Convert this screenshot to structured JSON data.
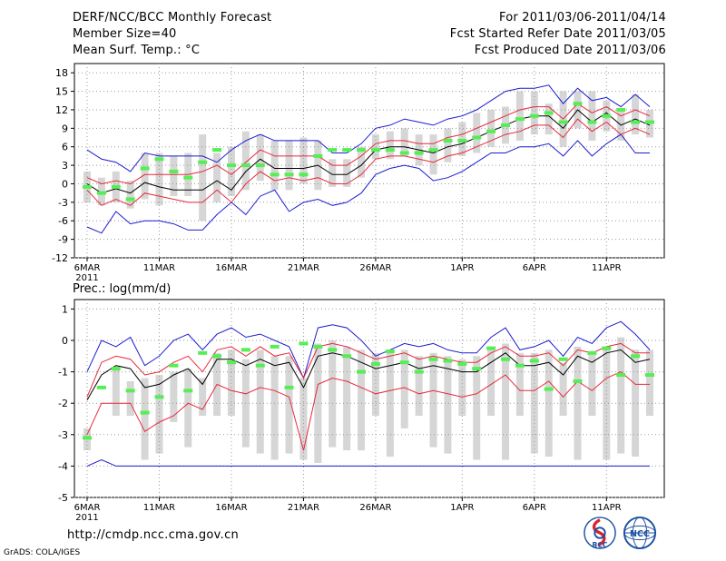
{
  "header": {
    "title": "DERF/NCC/BCC Monthly Forecast",
    "member_size": "Member Size=40",
    "variable": "Mean Surf. Temp.: °C",
    "period": "For 2011/03/06-2011/04/14",
    "fcst_started": "Fcst Started Refer Date 2011/03/05",
    "fcst_produced": "Fcst Produced Date 2011/03/06"
  },
  "footer": {
    "url": "http://cmdp.ncc.cma.gov.cn",
    "credit": "GrADS: COLA/IGES",
    "logo_bcc": "BCC",
    "logo_ncc": "NCC"
  },
  "colors": {
    "box": "#d6d6d6",
    "mean": "#000000",
    "inner_band": "#e8283c",
    "outer_band": "#1c1cd0",
    "obs": "#55ee55",
    "grid": "#9a9a9a"
  },
  "chart_data": [
    {
      "type": "line",
      "title": "Mean Surf. Temp.: °C",
      "x_tick_labels": [
        "6MAR",
        "11MAR",
        "16MAR",
        "21MAR",
        "26MAR",
        "1APR",
        "6APR",
        "11APR"
      ],
      "x_sub_label": "2011",
      "x_tick_days": [
        0,
        5,
        10,
        15,
        20,
        26,
        31,
        36
      ],
      "ylim": [
        -12,
        19.5
      ],
      "y_ticks": [
        -12,
        -9,
        -6,
        -3,
        0,
        3,
        6,
        9,
        12,
        15,
        18
      ],
      "y_tick_labels": [
        "-12",
        "-9",
        "-6",
        "-3",
        "0",
        "3",
        "6",
        "9",
        "12",
        "15",
        "18"
      ],
      "days": [
        0,
        1,
        2,
        3,
        4,
        5,
        6,
        7,
        8,
        9,
        10,
        11,
        12,
        13,
        14,
        15,
        16,
        17,
        18,
        19,
        20,
        21,
        22,
        23,
        24,
        25,
        26,
        27,
        28,
        29,
        30,
        31,
        32,
        33,
        34,
        35,
        36,
        37,
        38,
        39
      ],
      "mean": [
        0,
        -1.5,
        -0.8,
        -1.5,
        0.2,
        -0.5,
        -1,
        -1,
        -1,
        0.5,
        -1,
        2,
        4,
        2.5,
        2.5,
        2.5,
        3,
        1.5,
        1.5,
        3,
        5.5,
        6,
        6,
        5.5,
        5,
        6,
        6.5,
        7.5,
        8.5,
        9.5,
        10.5,
        11,
        11,
        9,
        12,
        10,
        11.5,
        9.5,
        10.5,
        9.5
      ],
      "inner_upper": [
        1,
        0,
        0.5,
        0,
        1.5,
        1.5,
        1.5,
        1.5,
        2,
        3,
        1.5,
        3.5,
        5.5,
        4.5,
        4.5,
        4.5,
        4.5,
        3,
        3,
        4.5,
        6.5,
        7,
        7,
        6.5,
        6.5,
        7.5,
        8,
        9,
        10,
        11,
        12,
        12.5,
        12.5,
        10.5,
        13,
        11.5,
        12.5,
        11,
        12,
        11
      ],
      "inner_lower": [
        -1,
        -3.5,
        -2.5,
        -3.5,
        -1.5,
        -2,
        -2.5,
        -3,
        -3,
        -1,
        -3,
        0,
        2,
        0.5,
        1,
        0.5,
        1,
        0,
        0,
        1.5,
        4,
        4.5,
        4.5,
        4,
        3.5,
        4.5,
        5,
        6,
        7,
        8,
        8.5,
        9.5,
        9.5,
        7.5,
        10.5,
        8.5,
        10,
        8,
        9,
        8
      ],
      "outer_upper": [
        5.5,
        4,
        3.5,
        2,
        5,
        4.5,
        4.5,
        4.5,
        4.5,
        3.5,
        5.5,
        7,
        8,
        7,
        7,
        7,
        7,
        5,
        5,
        6.5,
        9,
        9.5,
        10.5,
        10,
        9.5,
        10.5,
        11,
        12,
        13.5,
        15,
        15.5,
        15.5,
        16,
        13,
        15.5,
        13.5,
        14,
        12.5,
        14.5,
        12.5
      ],
      "outer_lower": [
        -7,
        -8,
        -4.5,
        -6.5,
        -6,
        -6,
        -6.5,
        -7.5,
        -7.5,
        -5,
        -3,
        -5,
        -2,
        -1,
        -4.5,
        -3,
        -2.5,
        -3.5,
        -3,
        -1.5,
        1.5,
        2.5,
        3,
        2.5,
        0.5,
        1,
        2,
        3.5,
        5,
        5,
        6,
        6,
        6.5,
        4.5,
        7,
        4.5,
        6.5,
        8,
        5,
        5
      ],
      "box_top": [
        2,
        1,
        2,
        0.5,
        5,
        5,
        4.5,
        5,
        8,
        5,
        6,
        8.5,
        8,
        7,
        7,
        7.5,
        7,
        4,
        4,
        6,
        8,
        8.5,
        9,
        8,
        8,
        9,
        10,
        11.5,
        12,
        12.5,
        15,
        15,
        13,
        15,
        15,
        15,
        13.5,
        12,
        14.5,
        12
      ],
      "box_bottom": [
        -3,
        -3.5,
        -3,
        -4,
        -2.5,
        -3.5,
        -2,
        -2,
        -6,
        -3,
        -2,
        -1,
        0.5,
        -1,
        -1,
        0,
        -1,
        -0.5,
        -0.5,
        1,
        4,
        4,
        4.5,
        3,
        1.5,
        3.5,
        4.5,
        5,
        6,
        6.5,
        7,
        8,
        8,
        6,
        9,
        7,
        8.5,
        7,
        8,
        7.5
      ],
      "observed": [
        -0.5,
        -1.5,
        -0.5,
        -2.5,
        2.5,
        4,
        2,
        1,
        3.5,
        5.5,
        3,
        3,
        3,
        1.5,
        1.5,
        1.5,
        4.5,
        5.5,
        5.5,
        5.5,
        5.5,
        5.5,
        5,
        5,
        5.5,
        7,
        7,
        7.5,
        8.5,
        9.5,
        10.5,
        11,
        11.5,
        10,
        13,
        10,
        11,
        12,
        10,
        10
      ]
    },
    {
      "type": "line",
      "title": "Prec.: log(mm/d)",
      "x_tick_labels": [
        "6MAR",
        "11MAR",
        "16MAR",
        "21MAR",
        "26MAR",
        "1APR",
        "6APR",
        "11APR"
      ],
      "x_sub_label": "2011",
      "x_tick_days": [
        0,
        5,
        10,
        15,
        20,
        26,
        31,
        36
      ],
      "ylim": [
        -5,
        1.3
      ],
      "y_ticks": [
        -5,
        -4,
        -3,
        -2,
        -1,
        0,
        1
      ],
      "y_tick_labels": [
        "-5",
        "-4",
        "-3",
        "-2",
        "-1",
        "0",
        "1"
      ],
      "days": [
        0,
        1,
        2,
        3,
        4,
        5,
        6,
        7,
        8,
        9,
        10,
        11,
        12,
        13,
        14,
        15,
        16,
        17,
        18,
        19,
        20,
        21,
        22,
        23,
        24,
        25,
        26,
        27,
        28,
        29,
        30,
        31,
        32,
        33,
        34,
        35,
        36,
        37,
        38,
        39
      ],
      "mean": [
        -1.9,
        -1.1,
        -0.8,
        -0.9,
        -1.5,
        -1.4,
        -1.1,
        -0.9,
        -1.4,
        -0.6,
        -0.6,
        -0.8,
        -0.6,
        -0.8,
        -0.7,
        -1.5,
        -0.5,
        -0.4,
        -0.5,
        -0.7,
        -0.9,
        -0.8,
        -0.7,
        -0.9,
        -0.8,
        -0.9,
        -1,
        -1,
        -0.7,
        -0.4,
        -0.8,
        -0.8,
        -0.7,
        -1.1,
        -0.5,
        -0.7,
        -0.4,
        -0.3,
        -0.7,
        -0.6
      ],
      "inner_upper": [
        -1.8,
        -0.7,
        -0.5,
        -0.6,
        -1.1,
        -1,
        -0.7,
        -0.5,
        -1,
        -0.3,
        -0.2,
        -0.5,
        -0.2,
        -0.5,
        -0.4,
        -1.2,
        -0.2,
        -0.1,
        -0.2,
        -0.4,
        -0.6,
        -0.5,
        -0.4,
        -0.6,
        -0.5,
        -0.6,
        -0.7,
        -0.7,
        -0.4,
        -0.2,
        -0.5,
        -0.5,
        -0.4,
        -0.8,
        -0.3,
        -0.4,
        -0.2,
        -0.1,
        -0.4,
        -0.4
      ],
      "inner_lower": [
        -3,
        -2,
        -2,
        -2,
        -2.9,
        -2.6,
        -2.4,
        -2,
        -2.2,
        -1.4,
        -1.6,
        -1.7,
        -1.5,
        -1.6,
        -1.8,
        -3.5,
        -1.4,
        -1.2,
        -1.3,
        -1.5,
        -1.7,
        -1.6,
        -1.5,
        -1.7,
        -1.6,
        -1.7,
        -1.8,
        -1.7,
        -1.4,
        -1.1,
        -1.6,
        -1.6,
        -1.3,
        -1.8,
        -1.3,
        -1.6,
        -1.2,
        -1,
        -1.4,
        -1.4
      ],
      "outer_upper": [
        -1,
        0,
        -0.2,
        0.1,
        -0.8,
        -0.5,
        0,
        0.2,
        -0.3,
        0.2,
        0.4,
        0.1,
        0.2,
        0,
        -0.2,
        -1.2,
        0.4,
        0.5,
        0.4,
        0,
        -0.5,
        -0.3,
        -0.1,
        -0.2,
        -0.1,
        -0.3,
        -0.4,
        -0.4,
        0.1,
        0.4,
        -0.3,
        -0.2,
        0,
        -0.5,
        0.1,
        -0.1,
        0.4,
        0.6,
        0.2,
        -0.3
      ],
      "outer_lower": [
        -4,
        -3.8,
        -4,
        -4,
        -4,
        -4,
        -4,
        -4,
        -4,
        -4,
        -4,
        -4,
        -4,
        -4,
        -4,
        -4,
        -4,
        -4,
        -4,
        -4,
        -4,
        -4,
        -4,
        -4,
        -4,
        -4,
        -4,
        -4,
        -4,
        -4,
        -4,
        -4,
        -4,
        -4,
        -4,
        -4,
        -4,
        -4,
        -4,
        -4
      ],
      "box_top": [
        -2.8,
        -2.4,
        -0.9,
        -1.3,
        -1.2,
        -1.1,
        -1,
        -0.9,
        -1.2,
        -0.4,
        -0.3,
        -0.6,
        -0.3,
        -0.5,
        -0.5,
        -1.2,
        -0.1,
        0,
        -0.2,
        -0.3,
        -0.4,
        -0.4,
        -0.3,
        -0.5,
        -0.4,
        -0.5,
        -0.6,
        -0.5,
        -0.3,
        -0.1,
        -0.4,
        -0.4,
        -0.3,
        -0.7,
        -0.2,
        -0.4,
        -0.2,
        0.1,
        -0.3,
        -0.3
      ],
      "box_bottom": [
        -3.5,
        -2.4,
        -2.4,
        -2.4,
        -3.8,
        -3.6,
        -2.6,
        -3.4,
        -2.4,
        -2.4,
        -2.4,
        -3.4,
        -3.6,
        -3.8,
        -3.6,
        -3.8,
        -3.9,
        -3.4,
        -3.5,
        -3.5,
        -2.4,
        -3.7,
        -2.8,
        -2.4,
        -3.4,
        -3.6,
        -2.4,
        -3.8,
        -2.4,
        -3.8,
        -2.4,
        -3.6,
        -3.7,
        -2.4,
        -3.8,
        -2.4,
        -3.8,
        -3.6,
        -3.7,
        -2.4
      ],
      "observed": [
        -3.1,
        -1.5,
        -0.9,
        -1.6,
        -2.3,
        -1.8,
        -0.8,
        -1.6,
        -0.4,
        -0.5,
        -0.7,
        -0.3,
        -0.8,
        -0.2,
        -1.5,
        -0.1,
        -0.2,
        -0.3,
        -0.5,
        -1,
        -0.75,
        -0.35,
        -0.7,
        -1,
        -0.6,
        -0.65,
        -0.75,
        -0.9,
        -0.25,
        -0.6,
        -0.8,
        -0.65,
        -1.55,
        -0.6,
        -1.3,
        -0.4,
        -0.25,
        -1.1,
        -0.5,
        -1.1
      ]
    }
  ]
}
